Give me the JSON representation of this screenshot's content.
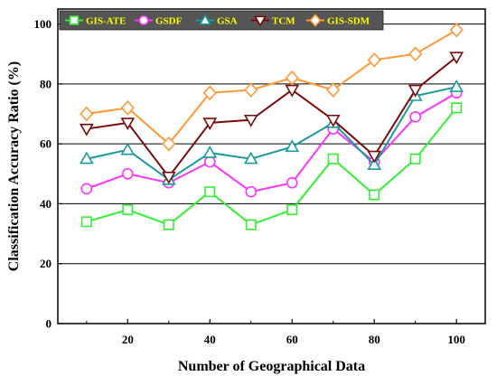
{
  "chart_data": {
    "type": "line",
    "xlabel": "Number of Geographical Data",
    "ylabel": "Classification Accuracy Ratio (%)",
    "xlim": [
      3,
      107
    ],
    "ylim": [
      0,
      105
    ],
    "x": [
      10,
      20,
      30,
      40,
      50,
      60,
      70,
      80,
      90,
      100
    ],
    "xticks": [
      20,
      40,
      60,
      80,
      100
    ],
    "yticks": [
      0,
      20,
      40,
      60,
      80,
      100
    ],
    "grid": "horizontal",
    "legend_position": "top",
    "series": [
      {
        "name": "GIS-ATE",
        "color": "#33ee33",
        "marker": "square",
        "values": [
          34,
          38,
          33,
          44,
          33,
          38,
          55,
          43,
          55,
          72
        ]
      },
      {
        "name": "GSDF",
        "color": "#ff33ff",
        "marker": "circle",
        "values": [
          45,
          50,
          47,
          54,
          44,
          47,
          65,
          54,
          69,
          77
        ]
      },
      {
        "name": "GSA",
        "color": "#1a9a9a",
        "marker": "triangle-up",
        "values": [
          55,
          58,
          48,
          57,
          55,
          59,
          67,
          53,
          76,
          79
        ]
      },
      {
        "name": "TCM",
        "color": "#7a0a0a",
        "marker": "triangle-down",
        "values": [
          65,
          67,
          49,
          67,
          68,
          78,
          68,
          56,
          78,
          89
        ]
      },
      {
        "name": "GIS-SDM",
        "color": "#ff9933",
        "marker": "diamond",
        "values": [
          70,
          72,
          60,
          77,
          78,
          82,
          78,
          88,
          90,
          98
        ]
      }
    ]
  }
}
